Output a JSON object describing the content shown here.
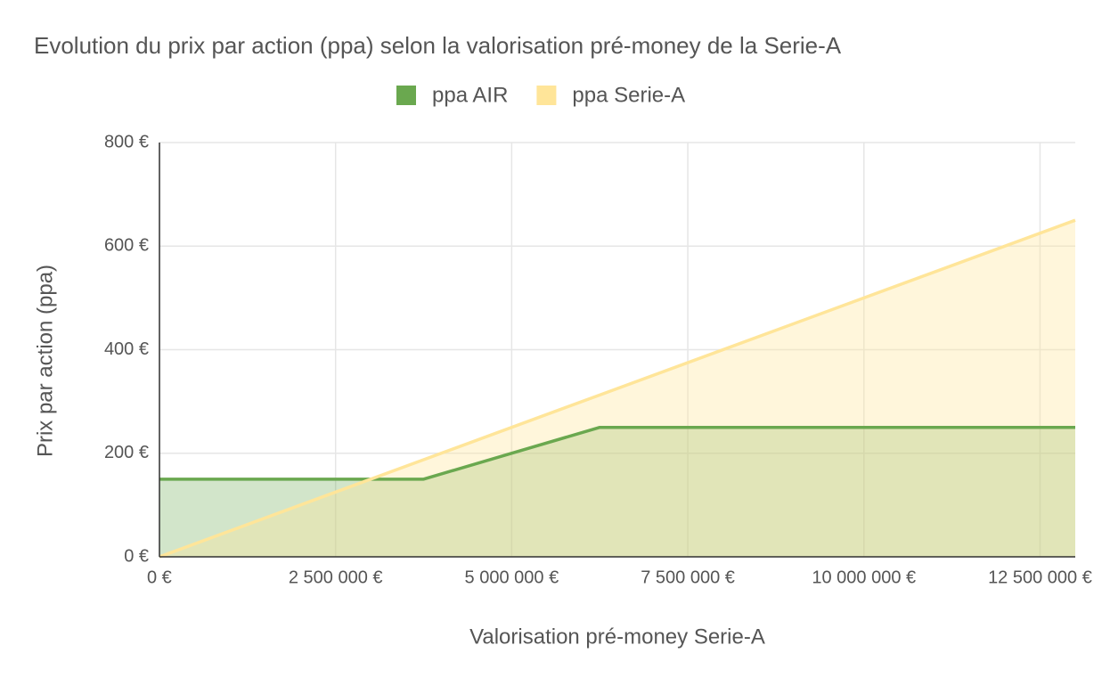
{
  "chart_data": {
    "type": "area",
    "title": "Evolution du prix par action (ppa) selon la valorisation pré-money de la Serie-A",
    "x_label": "Valorisation pré-money Serie-A",
    "y_label": "Prix par action (ppa)",
    "x": [
      0,
      3750000,
      6250000,
      13000000
    ],
    "series": [
      {
        "name": "ppa AIR",
        "color": "#6aa84f",
        "values": [
          150,
          150,
          250,
          250
        ]
      },
      {
        "name": "ppa Serie-A",
        "color": "#ffe599",
        "values": [
          0,
          187.5,
          312.5,
          650
        ]
      }
    ],
    "xlim": [
      0,
      13000000
    ],
    "xticks": [
      {
        "value": 0,
        "label": "0 €"
      },
      {
        "value": 2500000,
        "label": "2 500 000 €"
      },
      {
        "value": 5000000,
        "label": "5 000 000 €"
      },
      {
        "value": 7500000,
        "label": "7 500 000 €"
      },
      {
        "value": 10000000,
        "label": "10 000 000 €"
      },
      {
        "value": 12500000,
        "label": "12 500 000 €"
      }
    ],
    "ylim": [
      0,
      800
    ],
    "yticks": [
      {
        "value": 0,
        "label": "0 €"
      },
      {
        "value": 200,
        "label": "200 €"
      },
      {
        "value": 400,
        "label": "400 €"
      },
      {
        "value": 600,
        "label": "600 €"
      },
      {
        "value": 800,
        "label": "800 €"
      }
    ],
    "grid": true,
    "legend": "top"
  }
}
